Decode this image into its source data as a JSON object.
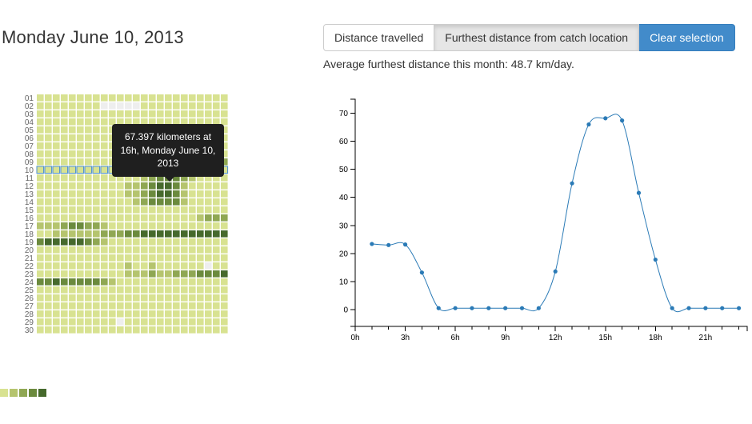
{
  "header": {
    "date_title": "Monday June 10, 2013"
  },
  "toolbar": {
    "distance_travelled_label": "Distance travelled",
    "furthest_distance_label": "Furthest distance from catch location",
    "clear_selection_label": "Clear selection"
  },
  "summary": {
    "text": "Average furthest distance this month: 48.7 km/day."
  },
  "tooltip": {
    "text": "67.397 kilometers at 16h, Monday June 10, 2013"
  },
  "colors": {
    "level0": "#d8e291",
    "level1": "#b5c46e",
    "level2": "#8fa753",
    "level3": "#6b8a3d",
    "level4": "#46692c",
    "missing": "#eeeeee",
    "selected_border": "#4a8fd0",
    "line": "#2a7ab6"
  },
  "legend": {
    "levels": [
      0,
      1,
      2,
      3,
      4
    ]
  },
  "heatmap": {
    "day_labels": [
      "01",
      "02",
      "03",
      "04",
      "05",
      "06",
      "07",
      "08",
      "09",
      "10",
      "11",
      "12",
      "13",
      "14",
      "15",
      "16",
      "17",
      "18",
      "19",
      "20",
      "21",
      "22",
      "23",
      "24",
      "25",
      "26",
      "27",
      "28",
      "29",
      "30"
    ],
    "hours": 24,
    "selected_day": "10",
    "levels": [
      "000000000000000000000000",
      "00000000-----00000000000",
      "000000000000000000000000",
      "000000000000000000000000",
      "000000000000000000000000",
      "000000000000000000000000",
      "000000000000000000000000",
      "000000000000000000000000",
      "000000000000000000000002",
      "000000000000002233321000",
      "000000000000012333210000",
      "000000000001123443100000",
      "000000000001123443100000",
      "000000000000123333100000",
      "000000000000000000000000",
      "000000000000000000001222",
      "111233221000000000000000",
      "001111112223344444444444",
      "344444321000000000000000",
      "000000000000000000000000",
      "000000000000000000000000",
      "000000000001001000000-00",
      "000000000001112112223334",
      "334333332100000000000000",
      "000000000000000000000000",
      "000000000000000000000000",
      "000000000000000000000000",
      "000000000000000000000000",
      "0000000000-0000000000000",
      "000000000000000000000000"
    ]
  },
  "chart_data": {
    "type": "line",
    "title": "",
    "xlabel": "",
    "ylabel": "",
    "x": [
      1,
      2,
      3,
      4,
      5,
      6,
      7,
      8,
      9,
      10,
      11,
      12,
      13,
      14,
      15,
      16,
      17,
      18,
      19,
      20,
      21,
      22,
      23
    ],
    "y": [
      23.4,
      23.0,
      23.2,
      13.2,
      0.5,
      0.5,
      0.5,
      0.5,
      0.5,
      0.5,
      0.5,
      13.6,
      45.0,
      66.0,
      68.2,
      67.4,
      41.6,
      17.8,
      0.5,
      0.5,
      0.5,
      0.5,
      0.5
    ],
    "xlim": [
      0,
      23.5
    ],
    "ylim": [
      -6,
      75
    ],
    "x_ticks": [
      0,
      3,
      6,
      9,
      12,
      15,
      18,
      21
    ],
    "x_tick_labels": [
      "0h",
      "3h",
      "6h",
      "9h",
      "12h",
      "15h",
      "18h",
      "21h"
    ],
    "y_ticks": [
      0,
      10,
      20,
      30,
      40,
      50,
      60,
      70
    ],
    "y_tick_labels": [
      "0",
      "10",
      "20",
      "30",
      "40",
      "50",
      "60",
      "70"
    ],
    "grid": false,
    "interpolation": "smooth"
  }
}
